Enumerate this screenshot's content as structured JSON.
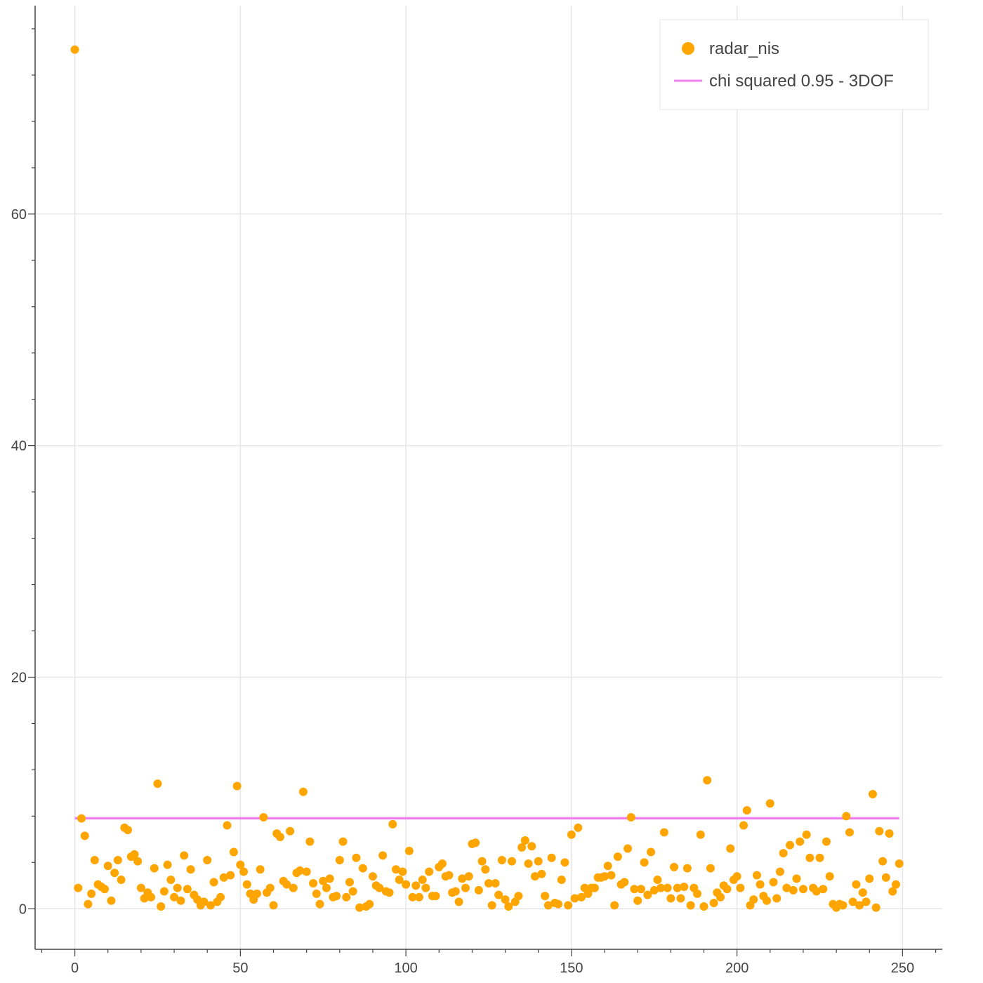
{
  "chart_data": {
    "type": "scatter",
    "xlim": [
      -12,
      262
    ],
    "ylim": [
      -3.5,
      78
    ],
    "x_ticks": [
      0,
      50,
      100,
      150,
      200,
      250
    ],
    "y_ticks": [
      0,
      20,
      40,
      60
    ],
    "grid": true,
    "legend_placement": "top-right",
    "series": [
      {
        "name": "radar_nis",
        "kind": "scatter",
        "color": "#FFA500",
        "x": [
          0,
          1,
          2,
          3,
          4,
          5,
          6,
          7,
          8,
          9,
          10,
          11,
          12,
          13,
          14,
          15,
          16,
          17,
          18,
          19,
          20,
          21,
          22,
          23,
          24,
          25,
          26,
          27,
          28,
          29,
          30,
          31,
          32,
          33,
          34,
          35,
          36,
          37,
          38,
          39,
          40,
          41,
          42,
          43,
          44,
          45,
          46,
          47,
          48,
          49,
          50,
          51,
          52,
          53,
          54,
          55,
          56,
          57,
          58,
          59,
          60,
          61,
          62,
          63,
          64,
          65,
          66,
          67,
          68,
          69,
          70,
          71,
          72,
          73,
          74,
          75,
          76,
          77,
          78,
          79,
          80,
          81,
          82,
          83,
          84,
          85,
          86,
          87,
          88,
          89,
          90,
          91,
          92,
          93,
          94,
          95,
          96,
          97,
          98,
          99,
          100,
          101,
          102,
          103,
          104,
          105,
          106,
          107,
          108,
          109,
          110,
          111,
          112,
          113,
          114,
          115,
          116,
          117,
          118,
          119,
          120,
          121,
          122,
          123,
          124,
          125,
          126,
          127,
          128,
          129,
          130,
          131,
          132,
          133,
          134,
          135,
          136,
          137,
          138,
          139,
          140,
          141,
          142,
          143,
          144,
          145,
          146,
          147,
          148,
          149,
          150,
          151,
          152,
          153,
          154,
          155,
          156,
          157,
          158,
          159,
          160,
          161,
          162,
          163,
          164,
          165,
          166,
          167,
          168,
          169,
          170,
          171,
          172,
          173,
          174,
          175,
          176,
          177,
          178,
          179,
          180,
          181,
          182,
          183,
          184,
          185,
          186,
          187,
          188,
          189,
          190,
          191,
          192,
          193,
          194,
          195,
          196,
          197,
          198,
          199,
          200,
          201,
          202,
          203,
          204,
          205,
          206,
          207,
          208,
          209,
          210,
          211,
          212,
          213,
          214,
          215,
          216,
          217,
          218,
          219,
          220,
          221,
          222,
          223,
          224,
          225,
          226,
          227,
          228,
          229,
          230,
          231,
          232,
          233,
          234,
          235,
          236,
          237,
          238,
          239,
          240,
          241,
          242,
          243,
          244,
          245,
          246,
          247,
          248,
          249
        ],
        "y": [
          74.2,
          1.8,
          7.8,
          6.3,
          0.4,
          1.3,
          4.2,
          2.1,
          1.9,
          1.7,
          3.7,
          0.7,
          3.1,
          4.2,
          2.5,
          7.0,
          6.8,
          4.5,
          4.7,
          4.1,
          1.8,
          0.9,
          1.4,
          1.0,
          3.5,
          10.8,
          0.2,
          1.5,
          3.8,
          2.5,
          1.0,
          1.8,
          0.7,
          4.6,
          1.7,
          3.4,
          1.2,
          0.8,
          0.3,
          0.6,
          4.2,
          0.3,
          2.3,
          0.6,
          1.0,
          2.7,
          7.2,
          2.9,
          4.9,
          10.6,
          3.8,
          3.2,
          2.1,
          1.3,
          0.8,
          1.3,
          3.4,
          7.9,
          1.4,
          1.8,
          0.3,
          6.5,
          6.2,
          2.4,
          2.1,
          6.7,
          1.8,
          3.1,
          3.3,
          10.1,
          3.2,
          5.8,
          2.2,
          1.3,
          0.4,
          2.4,
          1.8,
          2.6,
          1.0,
          1.1,
          4.2,
          5.8,
          1.0,
          2.3,
          1.5,
          4.4,
          0.1,
          3.5,
          0.2,
          0.4,
          2.8,
          2.0,
          1.8,
          4.6,
          1.5,
          1.4,
          7.3,
          3.4,
          2.5,
          3.2,
          2.1,
          5.0,
          1.0,
          2.0,
          1.0,
          2.5,
          1.8,
          3.2,
          1.1,
          1.1,
          3.6,
          3.9,
          2.8,
          2.9,
          1.4,
          1.5,
          0.6,
          2.6,
          1.8,
          2.8,
          5.6,
          5.7,
          1.6,
          4.1,
          3.4,
          2.2,
          0.3,
          2.2,
          1.2,
          4.2,
          0.8,
          0.2,
          4.1,
          0.6,
          1.1,
          5.3,
          5.9,
          3.9,
          5.4,
          2.8,
          4.1,
          3.0,
          1.1,
          0.3,
          4.4,
          0.5,
          0.4,
          2.5,
          4.0,
          0.3,
          6.4,
          0.9,
          7.0,
          1.0,
          1.8,
          1.3,
          1.8,
          1.8,
          2.7,
          2.7,
          2.8,
          3.7,
          2.9,
          0.3,
          4.5,
          2.1,
          2.3,
          5.2,
          7.9,
          1.7,
          0.7,
          1.7,
          4.0,
          1.2,
          4.9,
          1.6,
          2.5,
          1.8,
          6.6,
          1.8,
          0.9,
          3.6,
          1.8,
          0.9,
          1.9,
          3.5,
          0.3,
          1.8,
          1.3,
          6.4,
          0.2,
          11.1,
          3.5,
          0.5,
          1.4,
          1.0,
          2.0,
          1.7,
          5.2,
          2.5,
          2.8,
          1.8,
          7.2,
          8.5,
          0.3,
          0.8,
          2.9,
          2.1,
          1.1,
          0.7,
          9.1,
          2.3,
          0.9,
          3.2,
          4.8,
          1.8,
          5.5,
          1.6,
          2.6,
          5.8,
          1.7,
          6.4,
          4.4,
          1.8,
          1.5,
          4.4,
          1.7,
          5.8,
          2.8,
          0.4,
          0.1,
          0.4,
          0.3,
          8.0,
          6.6,
          0.6,
          2.1,
          0.3,
          1.4,
          0.6,
          2.6,
          9.9,
          0.1,
          6.7,
          4.1,
          2.7,
          6.5,
          1.5,
          2.1,
          3.9
        ]
      },
      {
        "name": "chi squared 0.95 - 3DOF",
        "kind": "line",
        "color": "#EE82EE",
        "x": [
          0,
          249
        ],
        "y": [
          7.815,
          7.815
        ]
      }
    ]
  }
}
